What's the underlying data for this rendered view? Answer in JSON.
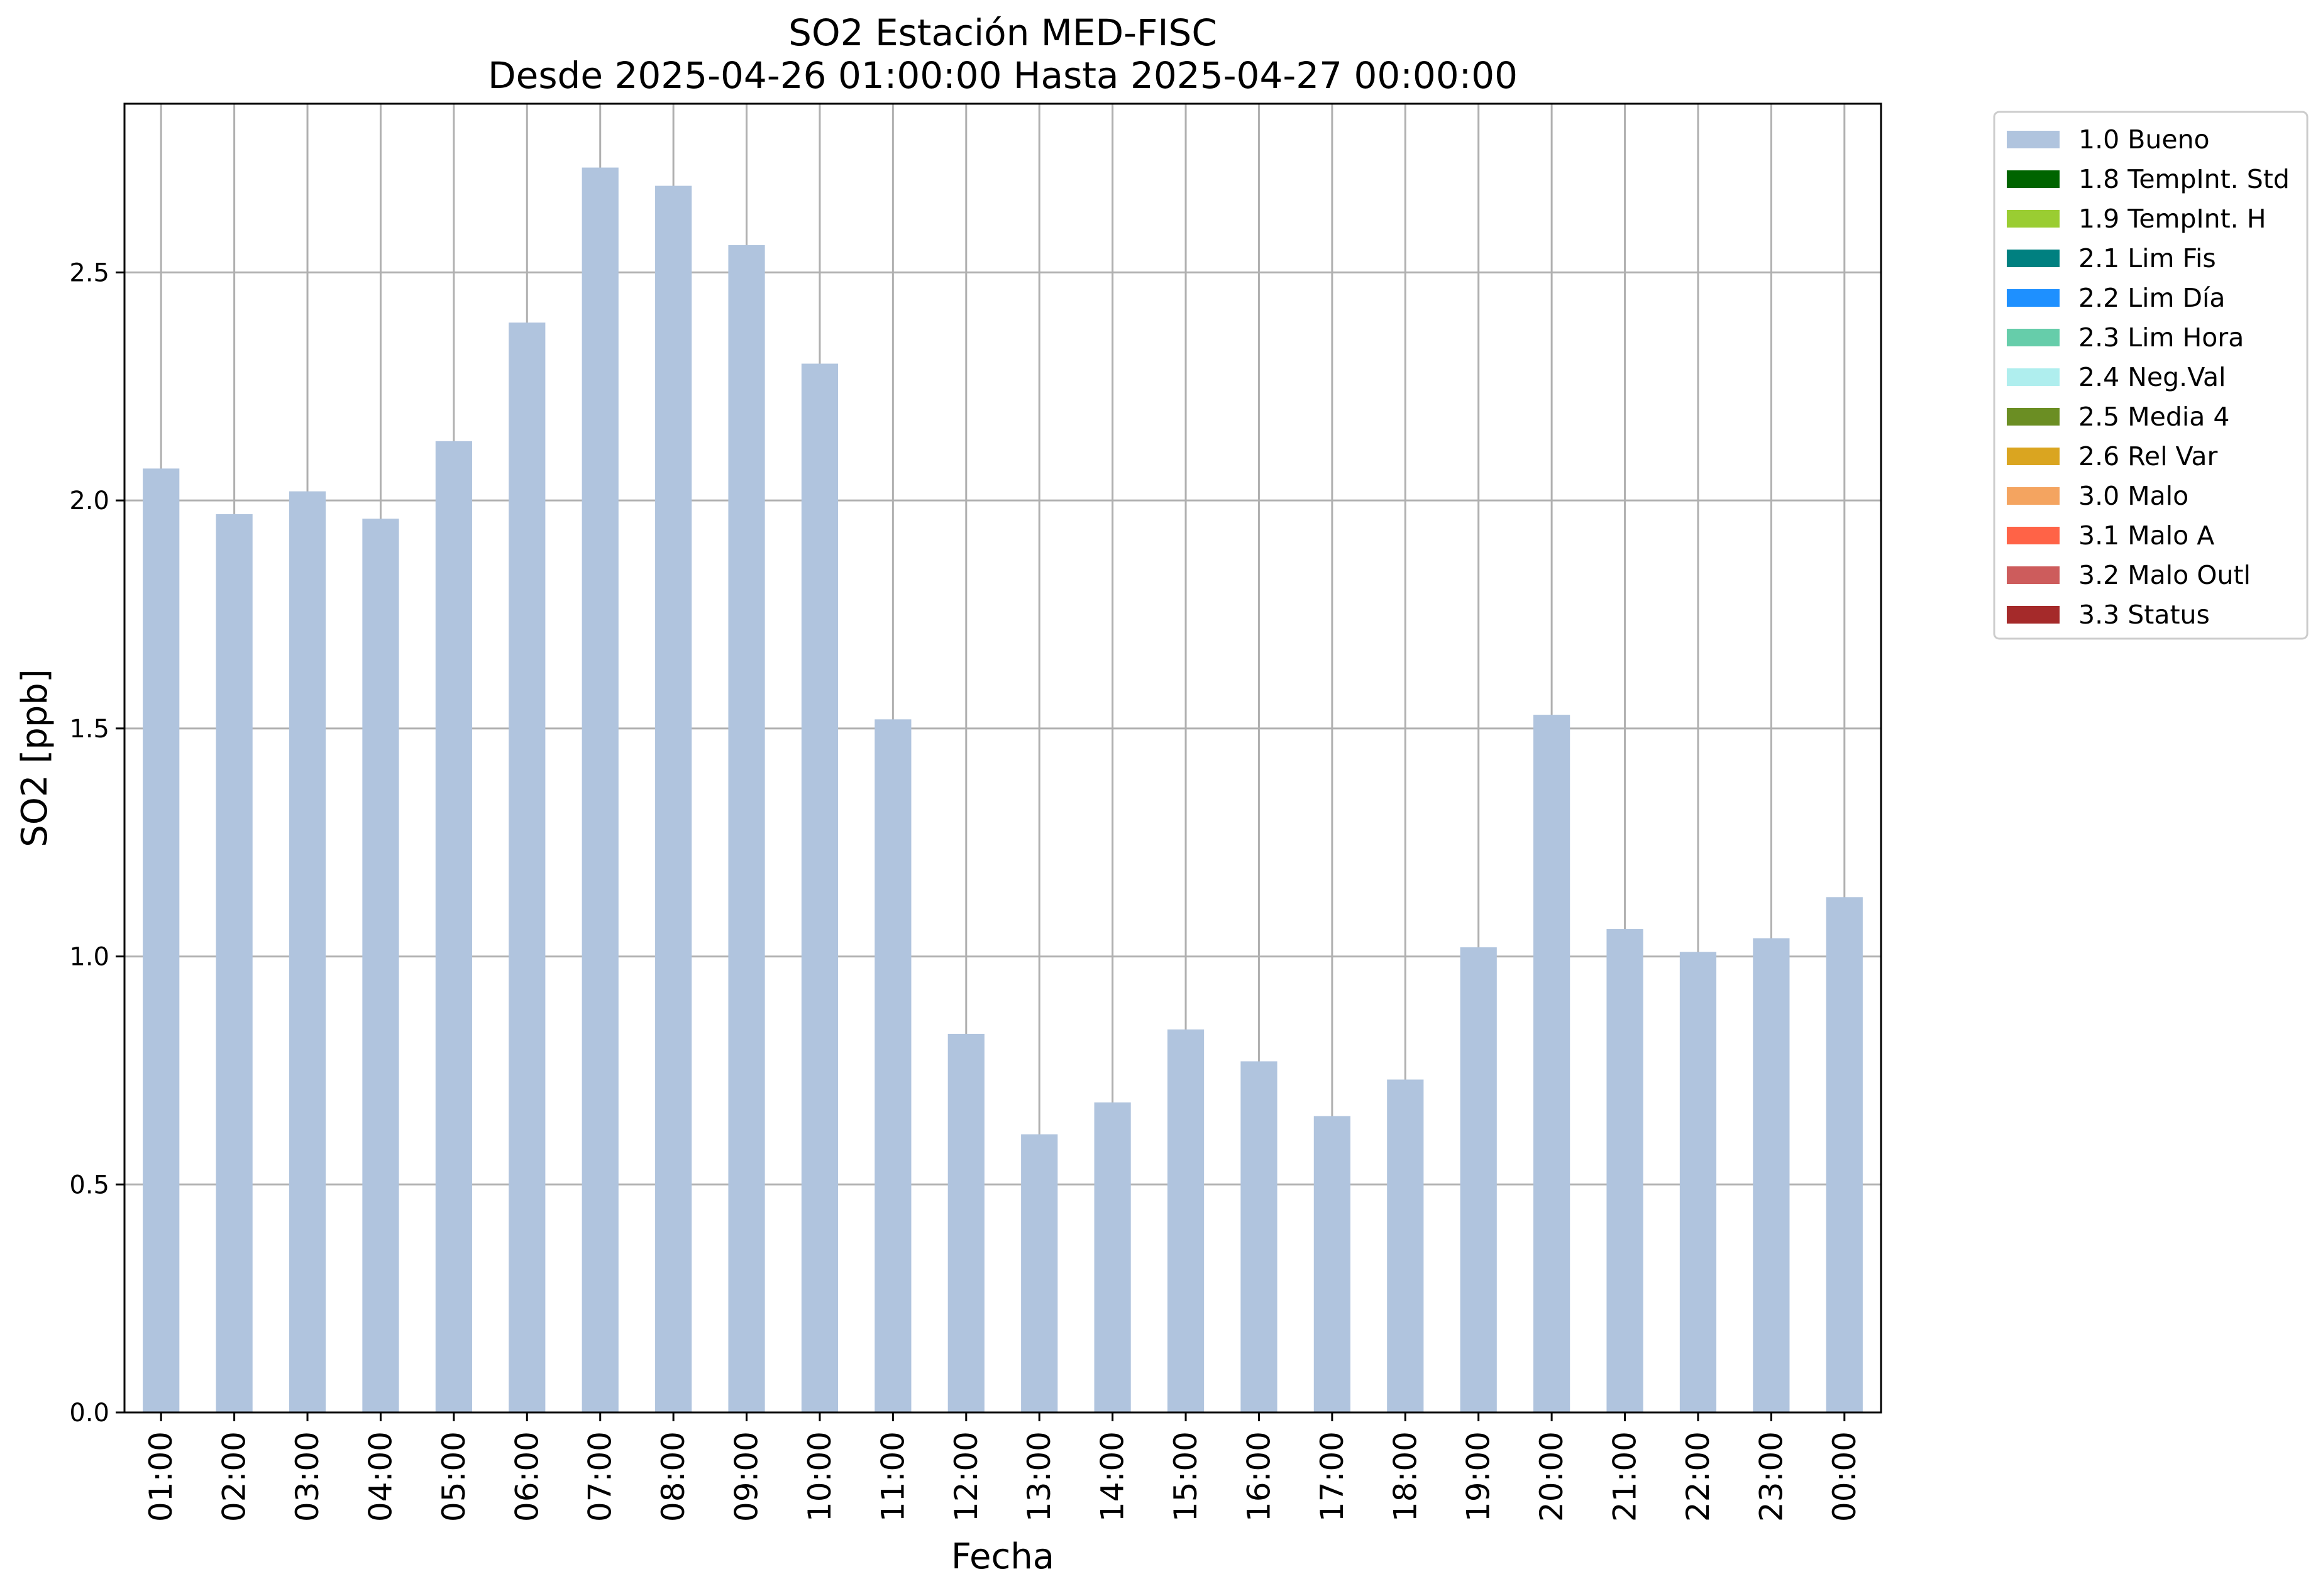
{
  "chart_data": {
    "type": "bar",
    "title": "SO2 Estación MED-FISC",
    "subtitle": "Desde 2025-04-26 01:00:00 Hasta 2025-04-27 00:00:00",
    "xlabel": "Fecha",
    "ylabel": "SO2 [ppb]",
    "ylim": [
      0,
      2.87
    ],
    "yticks": [
      "0.0",
      "0.5",
      "1.0",
      "1.5",
      "2.0",
      "2.5"
    ],
    "grid": true,
    "legend_position": "outside-top-right",
    "categories": [
      "01:00",
      "02:00",
      "03:00",
      "04:00",
      "05:00",
      "06:00",
      "07:00",
      "08:00",
      "09:00",
      "10:00",
      "11:00",
      "12:00",
      "13:00",
      "14:00",
      "15:00",
      "16:00",
      "17:00",
      "18:00",
      "19:00",
      "20:00",
      "21:00",
      "22:00",
      "23:00",
      "00:00"
    ],
    "series": [
      {
        "name": "1.0 Bueno",
        "color": "#b0c4de",
        "values": [
          2.07,
          1.97,
          2.02,
          1.96,
          2.13,
          2.39,
          2.73,
          2.69,
          2.56,
          2.3,
          1.52,
          0.83,
          0.61,
          0.68,
          0.84,
          0.77,
          0.65,
          0.73,
          1.02,
          1.53,
          1.06,
          1.01,
          1.04,
          1.13
        ]
      }
    ],
    "legend": [
      {
        "label": "1.0 Bueno",
        "color": "#b0c4de"
      },
      {
        "label": "1.8 TempInt. Std",
        "color": "#006400"
      },
      {
        "label": "1.9 TempInt. H",
        "color": "#9acd32"
      },
      {
        "label": "2.1 Lim Fis",
        "color": "#008080"
      },
      {
        "label": "2.2 Lim Día",
        "color": "#1e90ff"
      },
      {
        "label": "2.3 Lim Hora",
        "color": "#66cdaa"
      },
      {
        "label": "2.4 Neg.Val",
        "color": "#afeeee"
      },
      {
        "label": "2.5 Media 4",
        "color": "#6b8e23"
      },
      {
        "label": "2.6 Rel Var",
        "color": "#daa520"
      },
      {
        "label": "3.0 Malo",
        "color": "#f4a460"
      },
      {
        "label": "3.1 Malo A",
        "color": "#ff6347"
      },
      {
        "label": "3.2 Malo Outl",
        "color": "#cd5c5c"
      },
      {
        "label": "3.3 Status",
        "color": "#a52a2a"
      }
    ]
  }
}
